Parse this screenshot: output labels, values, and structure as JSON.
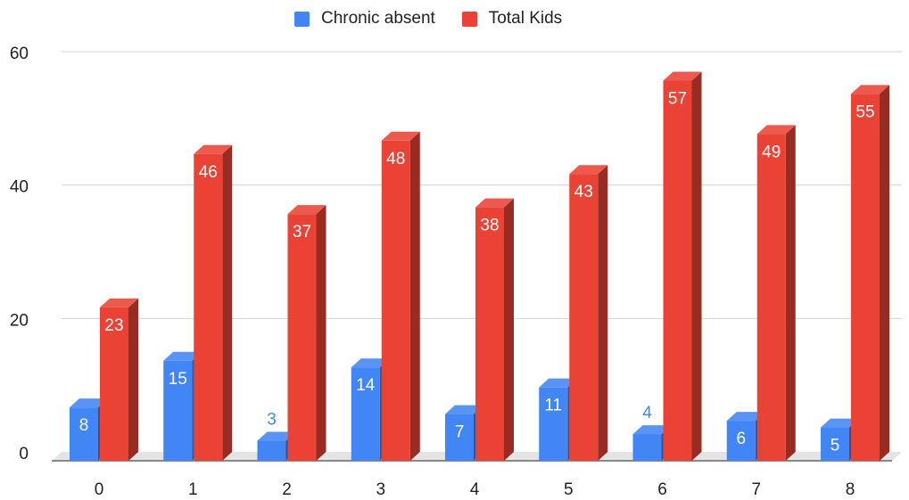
{
  "chart_data": {
    "type": "bar",
    "title": "",
    "xlabel": "",
    "ylabel": "",
    "categories": [
      "0",
      "1",
      "2",
      "3",
      "4",
      "5",
      "6",
      "7",
      "8"
    ],
    "series": [
      {
        "name": "Chronic absent",
        "color": "#4285F4",
        "values": [
          8,
          15,
          3,
          14,
          7,
          11,
          4,
          6,
          5
        ]
      },
      {
        "name": "Total Kids",
        "color": "#EA4335",
        "values": [
          23,
          46,
          37,
          48,
          38,
          43,
          57,
          49,
          55
        ]
      }
    ],
    "ylim": [
      0,
      60
    ],
    "yticks": [
      "0",
      "20",
      "40",
      "60"
    ],
    "grid": true,
    "legend": "top",
    "style": "3d-columns"
  }
}
